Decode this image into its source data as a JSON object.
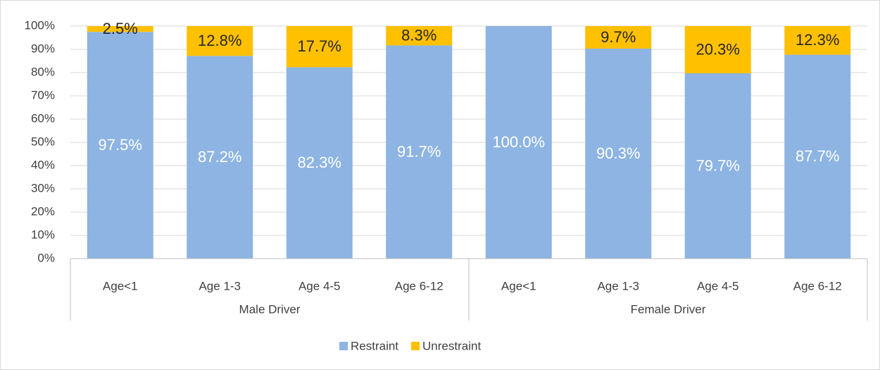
{
  "chart_data": {
    "type": "stacked_bar",
    "categories": [
      "Age<1",
      "Age 1-3",
      "Age 4-5",
      "Age 6-12",
      "Age<1",
      "Age 1-3",
      "Age 4-5",
      "Age 6-12"
    ],
    "groups": [
      "Male Driver",
      "Female Driver"
    ],
    "series": [
      {
        "name": "Restraint",
        "color": "#8db4e2",
        "label_color": "#ffffff",
        "values": [
          97.5,
          87.2,
          82.3,
          91.7,
          100.0,
          90.3,
          79.7,
          87.7
        ],
        "value_labels": [
          "97.5%",
          "87.2%",
          "82.3%",
          "91.7%",
          "100.0%",
          "90.3%",
          "79.7%",
          "87.7%"
        ]
      },
      {
        "name": "Unrestraint",
        "color": "#ffc000",
        "label_color": "#262626",
        "values": [
          2.5,
          12.8,
          17.7,
          8.3,
          0,
          9.7,
          20.3,
          12.3
        ],
        "value_labels": [
          "2.5%",
          "12.8%",
          "17.7%",
          "8.3%",
          null,
          "9.7%",
          "20.3%",
          "12.3%"
        ]
      }
    ],
    "ylim": [
      0,
      100
    ],
    "yticks": [
      {
        "value": 0,
        "label": "0%"
      },
      {
        "value": 10,
        "label": "10%"
      },
      {
        "value": 20,
        "label": "20%"
      },
      {
        "value": 30,
        "label": "30%"
      },
      {
        "value": 40,
        "label": "40%"
      },
      {
        "value": 50,
        "label": "50%"
      },
      {
        "value": 60,
        "label": "60%"
      },
      {
        "value": 70,
        "label": "70%"
      },
      {
        "value": 80,
        "label": "80%"
      },
      {
        "value": 90,
        "label": "90%"
      },
      {
        "value": 100,
        "label": "100%"
      }
    ],
    "grid": true,
    "legend": "bottom"
  }
}
